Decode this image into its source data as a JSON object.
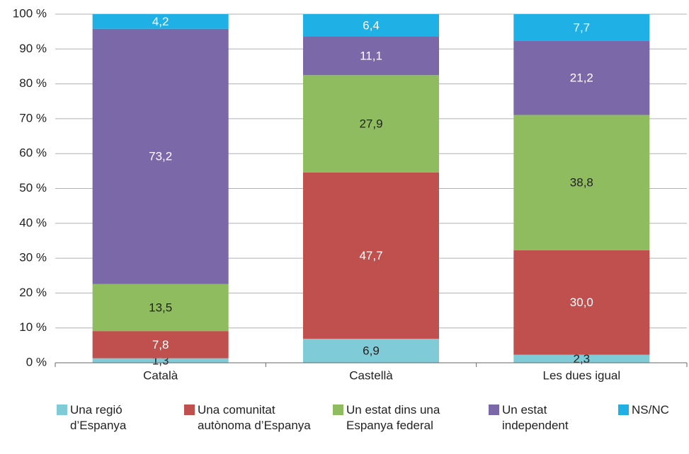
{
  "chart_data": {
    "type": "stacked_bar",
    "categories": [
      "Català",
      "Castellà",
      "Les dues igual"
    ],
    "series": [
      {
        "name": "Una regió d’Espanya",
        "color": "#7fcbd8",
        "values": [
          1.3,
          6.9,
          2.3
        ],
        "value_labels": [
          "1,3",
          "6,9",
          "2,3"
        ]
      },
      {
        "name": "Una comunitat autònoma d’Espanya",
        "color": "#c0504d",
        "values": [
          7.8,
          47.7,
          30.0
        ],
        "value_labels": [
          "7,8",
          "47,7",
          "30,0"
        ]
      },
      {
        "name": "Un estat dins una Espanya federal",
        "color": "#8fbc5f",
        "values": [
          13.5,
          27.9,
          38.8
        ],
        "value_labels": [
          "13,5",
          "27,9",
          "38,8"
        ]
      },
      {
        "name": "Un estat independent",
        "color": "#7b68a8",
        "values": [
          73.2,
          11.1,
          21.2
        ],
        "value_labels": [
          "73,2",
          "11,1",
          "21,2"
        ]
      },
      {
        "name": "NS/NC",
        "color": "#1fb0e6",
        "values": [
          4.2,
          6.4,
          7.7
        ],
        "value_labels": [
          "4,2",
          "6,4",
          "7,7"
        ]
      }
    ],
    "ylim": [
      0,
      100
    ],
    "yticks": [
      {
        "value": 0,
        "label": "0 %"
      },
      {
        "value": 10,
        "label": "10 %"
      },
      {
        "value": 20,
        "label": "20 %"
      },
      {
        "value": 30,
        "label": "30 %"
      },
      {
        "value": 40,
        "label": "40 %"
      },
      {
        "value": 50,
        "label": "50 %"
      },
      {
        "value": 60,
        "label": "60 %"
      },
      {
        "value": 70,
        "label": "70 %"
      },
      {
        "value": 80,
        "label": "80 %"
      },
      {
        "value": 90,
        "label": "90 %"
      },
      {
        "value": 100,
        "label": "100 %"
      }
    ],
    "grid": true
  }
}
